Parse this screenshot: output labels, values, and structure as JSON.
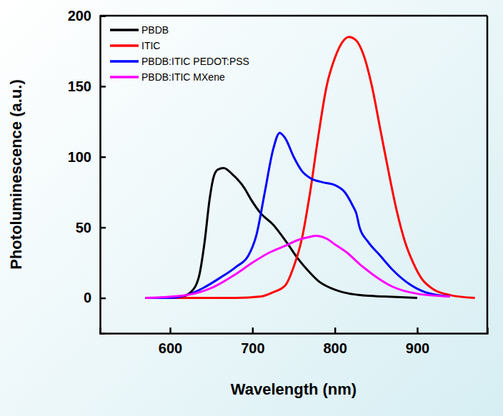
{
  "chart_data": {
    "type": "line",
    "x_label": "Wavelength (nm)",
    "y_label": "Photoluminescence (a.u.)",
    "xlim": [
      515,
      985
    ],
    "xticks": [
      600,
      700,
      800,
      900
    ],
    "ylim": [
      -25,
      200
    ],
    "yticks": [
      0,
      50,
      100,
      150,
      200
    ],
    "grid": false,
    "legend": "upper left",
    "series": [
      {
        "name": "PBDB",
        "color": "#000000",
        "x": [
          570,
          600,
          615,
          625,
          635,
          642,
          648,
          653,
          658,
          665,
          675,
          690,
          698,
          710,
          725,
          742,
          755,
          768,
          780,
          795,
          810,
          830,
          860,
          900
        ],
        "values": [
          0,
          0,
          1,
          4,
          15,
          40,
          70,
          86,
          91,
          92,
          88,
          78,
          70,
          60,
          52,
          39,
          28,
          19,
          12,
          7,
          4,
          2,
          1,
          0
        ]
      },
      {
        "name": "ITIC",
        "color": "#ff0000",
        "x": [
          570,
          680,
          710,
          725,
          740,
          750,
          760,
          770,
          780,
          790,
          800,
          810,
          817,
          825,
          835,
          845,
          855,
          865,
          875,
          885,
          895,
          905,
          920,
          940,
          970
        ],
        "values": [
          0,
          0,
          1,
          4,
          9,
          22,
          42,
          75,
          115,
          150,
          170,
          182,
          185,
          183,
          172,
          150,
          120,
          90,
          62,
          40,
          25,
          14,
          6,
          2,
          0
        ]
      },
      {
        "name": "PBDB:ITIC PEDOT:PSS",
        "color": "#0000ff",
        "x": [
          570,
          600,
          620,
          640,
          660,
          680,
          695,
          705,
          715,
          725,
          733,
          740,
          750,
          760,
          770,
          785,
          800,
          812,
          822,
          826,
          830,
          840,
          855,
          870,
          890,
          910,
          940
        ],
        "values": [
          0,
          0,
          2,
          7,
          14,
          22,
          30,
          45,
          75,
          105,
          117,
          113,
          100,
          90,
          85,
          82,
          80,
          75,
          65,
          60,
          50,
          40,
          30,
          20,
          10,
          4,
          1
        ]
      },
      {
        "name": "PBDB:ITIC MXene",
        "color": "#ff00ff",
        "x": [
          570,
          620,
          650,
          680,
          700,
          720,
          740,
          755,
          768,
          777,
          790,
          800,
          815,
          830,
          850,
          870,
          900,
          940
        ],
        "values": [
          0,
          2,
          7,
          17,
          25,
          32,
          37,
          41,
          43,
          44,
          42,
          38,
          32,
          24,
          15,
          8,
          3,
          1
        ]
      }
    ]
  }
}
